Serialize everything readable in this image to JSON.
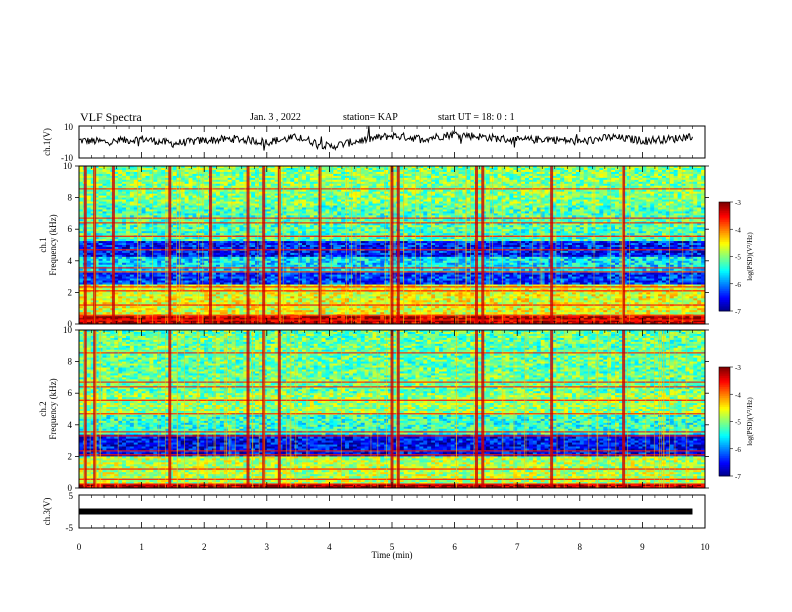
{
  "header": {
    "title": "VLF Spectra",
    "date": "Jan. 3 , 2022",
    "station": "station= KAP",
    "start": "start UT = 18: 0 : 1"
  },
  "chart_data": [
    {
      "type": "line",
      "panel": "ch1-waveform",
      "ylabel": "ch.1(V)",
      "ylim": [
        -10,
        10
      ],
      "yticks": [
        "10",
        "-10"
      ],
      "xlim": [
        0,
        9.8
      ],
      "note_visible": "noisy waveform oscillating mostly between about -3 and +5 V with spikes",
      "x": [
        0,
        0.5,
        1,
        1.5,
        2,
        2.5,
        3,
        3.5,
        4,
        4.5,
        5,
        5.5,
        6,
        6.5,
        7,
        7.5,
        8,
        8.5,
        9,
        9.5,
        9.8
      ],
      "y": [
        1,
        0,
        2,
        -1,
        1,
        2,
        0,
        3,
        -3,
        1,
        4,
        2,
        5,
        3,
        1,
        2,
        0,
        3,
        1,
        2,
        4
      ]
    },
    {
      "type": "heatmap",
      "panel": "ch1-spectrogram",
      "ylabel": "ch.1\nFrequency (kHz)",
      "ylim": [
        0,
        10
      ],
      "yticks": [
        "0",
        "2",
        "4",
        "6",
        "8",
        "10"
      ],
      "xlim": [
        0,
        10
      ],
      "colorbar": {
        "label": "log(PSD)(V²/Hz)",
        "ticks": [
          "-3",
          "-4",
          "-5",
          "-6",
          "-7"
        ],
        "range": [
          -7,
          -3
        ]
      },
      "bands_khz": [
        {
          "from": 0,
          "to": 0.5,
          "level": -3.2
        },
        {
          "from": 0.5,
          "to": 2.5,
          "level": -4.6
        },
        {
          "from": 2.5,
          "to": 3.2,
          "level": -6.3
        },
        {
          "from": 3.2,
          "to": 4.2,
          "level": -5.6
        },
        {
          "from": 4.2,
          "to": 5.2,
          "level": -6.4
        },
        {
          "from": 5.2,
          "to": 7.5,
          "level": -5.2
        },
        {
          "from": 7.5,
          "to": 10,
          "level": -5.0
        }
      ],
      "vertical_events_min": [
        0.1,
        0.25,
        0.55,
        1.45,
        2.1,
        2.7,
        2.95,
        3.2,
        3.85,
        5.0,
        5.1,
        6.35,
        6.45,
        7.55,
        8.7
      ]
    },
    {
      "type": "heatmap",
      "panel": "ch2-spectrogram",
      "ylabel": "ch.2\nFrequency (kHz)",
      "ylim": [
        0,
        10
      ],
      "yticks": [
        "0",
        "2",
        "4",
        "6",
        "8",
        "10"
      ],
      "xlim": [
        0,
        10
      ],
      "colorbar": {
        "label": "log(PSD)(V²/Hz)",
        "ticks": [
          "-3",
          "-4",
          "-5",
          "-6",
          "-7"
        ],
        "range": [
          -7,
          -3
        ]
      },
      "bands_khz": [
        {
          "from": 0,
          "to": 0.3,
          "level": -3.1
        },
        {
          "from": 0.3,
          "to": 2.0,
          "level": -4.8
        },
        {
          "from": 2.0,
          "to": 3.4,
          "level": -6.5
        },
        {
          "from": 3.4,
          "to": 4.6,
          "level": -5.3
        },
        {
          "from": 4.6,
          "to": 6.0,
          "level": -4.9
        },
        {
          "from": 6.0,
          "to": 10,
          "level": -5.1
        }
      ],
      "vertical_events_min": [
        0.1,
        0.25,
        1.45,
        2.7,
        2.95,
        3.2,
        5.0,
        5.1,
        6.35,
        6.45,
        7.55,
        8.7
      ]
    },
    {
      "type": "line",
      "panel": "ch3-waveform",
      "ylabel": "ch.3(V)",
      "ylim": [
        -5,
        5
      ],
      "yticks": [
        "5",
        "-5"
      ],
      "xlim": [
        0,
        9.8
      ],
      "x": [
        0,
        9.8
      ],
      "y": [
        0,
        0
      ]
    }
  ],
  "xaxis": {
    "label": "Time (min)",
    "ticks": [
      "0",
      "1",
      "2",
      "3",
      "4",
      "5",
      "6",
      "7",
      "8",
      "9",
      "10"
    ],
    "range": [
      0,
      10
    ]
  }
}
